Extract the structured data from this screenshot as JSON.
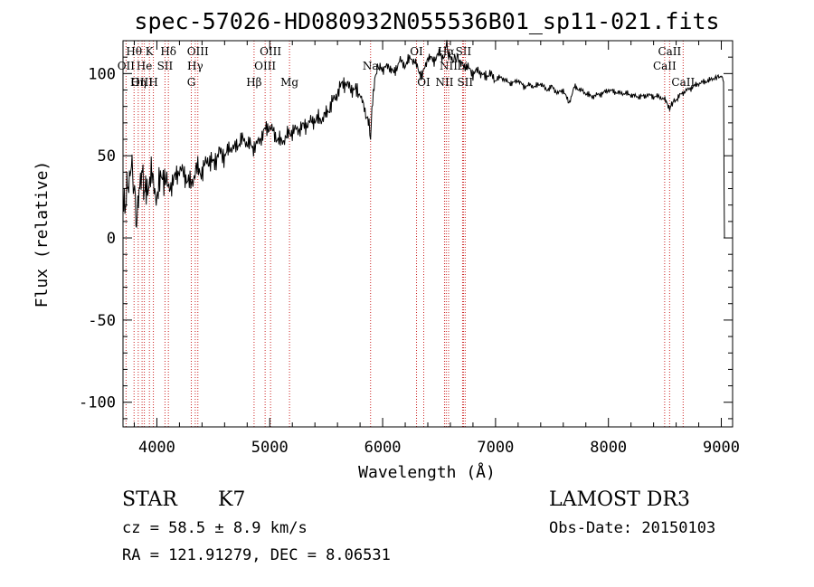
{
  "chart_data": {
    "type": "line",
    "title": "spec-57026-HD080932N055536B01_sp11-021.fits",
    "xlabel": "Wavelength (Å)",
    "ylabel": "Flux (relative)",
    "xlim": [
      3700,
      9100
    ],
    "ylim": [
      -115,
      120
    ],
    "xticks": [
      4000,
      5000,
      6000,
      7000,
      8000,
      9000
    ],
    "yticks": [
      -100,
      -50,
      0,
      50,
      100
    ],
    "grid": false,
    "series": [
      {
        "name": "spectrum",
        "x": [
          3700,
          3740,
          3780,
          3820,
          3860,
          3900,
          3950,
          4000,
          4050,
          4100,
          4150,
          4200,
          4250,
          4300,
          4350,
          4400,
          4450,
          4500,
          4550,
          4600,
          4650,
          4700,
          4750,
          4800,
          4850,
          4900,
          4950,
          5000,
          5050,
          5100,
          5150,
          5200,
          5250,
          5300,
          5350,
          5400,
          5450,
          5500,
          5550,
          5600,
          5650,
          5700,
          5750,
          5800,
          5850,
          5880,
          5893,
          5905,
          5930,
          5960,
          6000,
          6050,
          6100,
          6150,
          6200,
          6250,
          6300,
          6350,
          6400,
          6450,
          6500,
          6550,
          6563,
          6580,
          6620,
          6660,
          6700,
          6750,
          6800,
          6850,
          6900,
          6950,
          7000,
          7050,
          7100,
          7150,
          7200,
          7250,
          7300,
          7350,
          7400,
          7450,
          7500,
          7550,
          7600,
          7650,
          7700,
          7750,
          7800,
          7850,
          7900,
          7950,
          8000,
          8050,
          8100,
          8150,
          8200,
          8250,
          8300,
          8350,
          8400,
          8450,
          8500,
          8542,
          8560,
          8600,
          8650,
          8700,
          8750,
          8800,
          8850,
          8900,
          8950,
          8990,
          9010,
          9020
        ],
        "y": [
          15,
          30,
          45,
          10,
          40,
          28,
          38,
          25,
          40,
          30,
          35,
          42,
          38,
          32,
          42,
          40,
          48,
          45,
          52,
          50,
          55,
          55,
          60,
          58,
          55,
          58,
          65,
          68,
          62,
          58,
          62,
          65,
          66,
          68,
          70,
          72,
          72,
          75,
          82,
          88,
          95,
          92,
          90,
          88,
          75,
          70,
          60,
          80,
          95,
          105,
          102,
          105,
          100,
          108,
          105,
          110,
          105,
          98,
          110,
          108,
          112,
          110,
          118,
          112,
          108,
          110,
          106,
          104,
          100,
          102,
          98,
          100,
          96,
          98,
          95,
          94,
          96,
          92,
          93,
          92,
          94,
          90,
          92,
          88,
          90,
          82,
          92,
          90,
          88,
          86,
          87,
          88,
          90,
          89,
          88,
          88,
          87,
          86,
          86,
          87,
          86,
          86,
          84,
          78,
          82,
          84,
          88,
          90,
          92,
          94,
          95,
          96,
          98,
          98,
          98,
          95
        ]
      }
    ],
    "spectral_lines": [
      {
        "label": "Hθ",
        "x": 3798,
        "row": 0
      },
      {
        "label": "OII",
        "x": 3727,
        "row": 1
      },
      {
        "label": "OIII",
        "x": 3869,
        "row": 2
      },
      {
        "label": "K",
        "x": 3934,
        "row": 0
      },
      {
        "label": "He",
        "x": 3889,
        "row": 1
      },
      {
        "label": "Hη",
        "x": 3835,
        "row": 2
      },
      {
        "label": "Hδ",
        "x": 4102,
        "row": 0
      },
      {
        "label": "SII",
        "x": 4072,
        "row": 1
      },
      {
        "label": "H",
        "x": 3969,
        "row": 2
      },
      {
        "label": "OIII",
        "x": 4363,
        "row": 0
      },
      {
        "label": "Hγ",
        "x": 4340,
        "row": 1
      },
      {
        "label": "G",
        "x": 4305,
        "row": 2
      },
      {
        "label": "OIII",
        "x": 5007,
        "row": 0
      },
      {
        "label": "OIII",
        "x": 4959,
        "row": 1
      },
      {
        "label": "Hβ",
        "x": 4861,
        "row": 2
      },
      {
        "label": "Mg",
        "x": 5175,
        "row": 2
      },
      {
        "label": "Na",
        "x": 5893,
        "row": 1
      },
      {
        "label": "OI",
        "x": 6300,
        "row": 0
      },
      {
        "label": "OI",
        "x": 6364,
        "row": 2
      },
      {
        "label": "Hα",
        "x": 6563,
        "row": 0
      },
      {
        "label": "SII",
        "x": 6716,
        "row": 0
      },
      {
        "label": "NII",
        "x": 6584,
        "row": 1
      },
      {
        "label": "Li",
        "x": 6708,
        "row": 1
      },
      {
        "label": "NII",
        "x": 6548,
        "row": 2
      },
      {
        "label": "SII",
        "x": 6731,
        "row": 2
      },
      {
        "label": "CaII",
        "x": 8542,
        "row": 0
      },
      {
        "label": "CaII",
        "x": 8498,
        "row": 1
      },
      {
        "label": "CaII",
        "x": 8662,
        "row": 2
      }
    ]
  },
  "info": {
    "class_label": "STAR",
    "subclass": "K7",
    "survey": "LAMOST DR3",
    "cz": "cz = 58.5 ± 8.9 km/s",
    "obs_date": "Obs-Date: 20150103",
    "coords": "RA = 121.91279, DEC =   8.06531"
  }
}
